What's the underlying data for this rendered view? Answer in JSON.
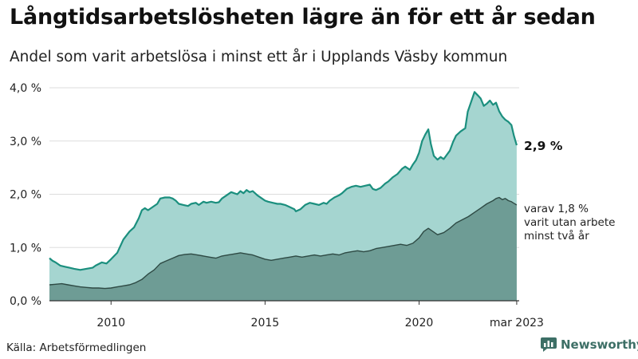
{
  "title": "Långtidsarbetslösheten lägre än för ett år sedan",
  "subtitle": "Andel som varit arbetslösa i minst ett år i Upplands Väsby kommun",
  "source": "Källa: Arbetsförmedlingen",
  "brand": {
    "name": "Newsworthy",
    "icon": "bar-chart-icon",
    "color": "#3d6f66"
  },
  "colors": {
    "total_fill": "#a5d5d0",
    "total_line": "#1b8f7e",
    "long_fill": "#6e9c95",
    "long_line": "#2e4a44",
    "grid": "#dddddd",
    "axis": "#333333"
  },
  "chart_data": {
    "type": "area",
    "x_range": [
      2008,
      2023.25
    ],
    "y_range": [
      0,
      4.0
    ],
    "y_ticks": [
      {
        "value": 0,
        "label": "0,0 %"
      },
      {
        "value": 1.0,
        "label": "1,0 %"
      },
      {
        "value": 2.0,
        "label": "2,0 %"
      },
      {
        "value": 3.0,
        "label": "3,0 %"
      },
      {
        "value": 4.0,
        "label": "4,0 %"
      }
    ],
    "x_ticks": [
      {
        "value": 2010,
        "label": "2010"
      },
      {
        "value": 2015,
        "label": "2015"
      },
      {
        "value": 2020,
        "label": "2020"
      },
      {
        "value": 2023.17,
        "label": "mar 2023"
      }
    ],
    "grid": true,
    "series": [
      {
        "key": "total",
        "points": [
          [
            2008.0,
            0.8
          ],
          [
            2008.1,
            0.75
          ],
          [
            2008.2,
            0.72
          ],
          [
            2008.35,
            0.66
          ],
          [
            2008.5,
            0.64
          ],
          [
            2008.65,
            0.62
          ],
          [
            2008.8,
            0.6
          ],
          [
            2009.0,
            0.58
          ],
          [
            2009.2,
            0.6
          ],
          [
            2009.4,
            0.62
          ],
          [
            2009.5,
            0.66
          ],
          [
            2009.7,
            0.72
          ],
          [
            2009.85,
            0.7
          ],
          [
            2010.0,
            0.78
          ],
          [
            2010.2,
            0.9
          ],
          [
            2010.4,
            1.15
          ],
          [
            2010.6,
            1.3
          ],
          [
            2010.75,
            1.38
          ],
          [
            2010.9,
            1.55
          ],
          [
            2011.0,
            1.7
          ],
          [
            2011.1,
            1.74
          ],
          [
            2011.2,
            1.7
          ],
          [
            2011.35,
            1.76
          ],
          [
            2011.5,
            1.82
          ],
          [
            2011.6,
            1.92
          ],
          [
            2011.75,
            1.94
          ],
          [
            2011.9,
            1.94
          ],
          [
            2012.0,
            1.92
          ],
          [
            2012.1,
            1.88
          ],
          [
            2012.2,
            1.82
          ],
          [
            2012.35,
            1.8
          ],
          [
            2012.5,
            1.78
          ],
          [
            2012.6,
            1.82
          ],
          [
            2012.75,
            1.84
          ],
          [
            2012.85,
            1.8
          ],
          [
            2013.0,
            1.86
          ],
          [
            2013.1,
            1.84
          ],
          [
            2013.25,
            1.86
          ],
          [
            2013.4,
            1.84
          ],
          [
            2013.5,
            1.85
          ],
          [
            2013.6,
            1.92
          ],
          [
            2013.75,
            1.98
          ],
          [
            2013.9,
            2.04
          ],
          [
            2014.0,
            2.02
          ],
          [
            2014.1,
            2.0
          ],
          [
            2014.2,
            2.06
          ],
          [
            2014.3,
            2.02
          ],
          [
            2014.4,
            2.08
          ],
          [
            2014.5,
            2.04
          ],
          [
            2014.6,
            2.06
          ],
          [
            2014.75,
            1.98
          ],
          [
            2014.9,
            1.92
          ],
          [
            2015.0,
            1.88
          ],
          [
            2015.1,
            1.86
          ],
          [
            2015.25,
            1.84
          ],
          [
            2015.4,
            1.82
          ],
          [
            2015.5,
            1.82
          ],
          [
            2015.65,
            1.8
          ],
          [
            2015.8,
            1.76
          ],
          [
            2015.95,
            1.72
          ],
          [
            2016.0,
            1.68
          ],
          [
            2016.15,
            1.72
          ],
          [
            2016.3,
            1.8
          ],
          [
            2016.45,
            1.84
          ],
          [
            2016.6,
            1.82
          ],
          [
            2016.75,
            1.8
          ],
          [
            2016.9,
            1.84
          ],
          [
            2017.0,
            1.82
          ],
          [
            2017.1,
            1.88
          ],
          [
            2017.25,
            1.94
          ],
          [
            2017.4,
            1.98
          ],
          [
            2017.5,
            2.02
          ],
          [
            2017.65,
            2.1
          ],
          [
            2017.8,
            2.14
          ],
          [
            2017.95,
            2.16
          ],
          [
            2018.1,
            2.14
          ],
          [
            2018.25,
            2.16
          ],
          [
            2018.4,
            2.18
          ],
          [
            2018.5,
            2.1
          ],
          [
            2018.6,
            2.08
          ],
          [
            2018.75,
            2.12
          ],
          [
            2018.9,
            2.2
          ],
          [
            2019.0,
            2.24
          ],
          [
            2019.15,
            2.32
          ],
          [
            2019.3,
            2.38
          ],
          [
            2019.45,
            2.48
          ],
          [
            2019.55,
            2.52
          ],
          [
            2019.7,
            2.46
          ],
          [
            2019.8,
            2.56
          ],
          [
            2019.9,
            2.64
          ],
          [
            2020.0,
            2.78
          ],
          [
            2020.1,
            3.0
          ],
          [
            2020.2,
            3.12
          ],
          [
            2020.3,
            3.22
          ],
          [
            2020.38,
            2.95
          ],
          [
            2020.48,
            2.72
          ],
          [
            2020.6,
            2.65
          ],
          [
            2020.7,
            2.7
          ],
          [
            2020.8,
            2.66
          ],
          [
            2020.9,
            2.74
          ],
          [
            2021.0,
            2.82
          ],
          [
            2021.1,
            2.98
          ],
          [
            2021.2,
            3.1
          ],
          [
            2021.35,
            3.18
          ],
          [
            2021.5,
            3.24
          ],
          [
            2021.58,
            3.55
          ],
          [
            2021.68,
            3.72
          ],
          [
            2021.8,
            3.92
          ],
          [
            2021.9,
            3.86
          ],
          [
            2022.0,
            3.8
          ],
          [
            2022.1,
            3.66
          ],
          [
            2022.2,
            3.7
          ],
          [
            2022.3,
            3.76
          ],
          [
            2022.4,
            3.68
          ],
          [
            2022.5,
            3.72
          ],
          [
            2022.6,
            3.56
          ],
          [
            2022.7,
            3.46
          ],
          [
            2022.8,
            3.4
          ],
          [
            2022.9,
            3.36
          ],
          [
            2023.0,
            3.3
          ],
          [
            2023.08,
            3.1
          ],
          [
            2023.17,
            2.92
          ]
        ],
        "end_label": "2,9 %"
      },
      {
        "key": "long",
        "points": [
          [
            2008.0,
            0.3
          ],
          [
            2008.2,
            0.31
          ],
          [
            2008.4,
            0.32
          ],
          [
            2008.6,
            0.3
          ],
          [
            2008.8,
            0.28
          ],
          [
            2009.0,
            0.26
          ],
          [
            2009.2,
            0.25
          ],
          [
            2009.4,
            0.24
          ],
          [
            2009.6,
            0.24
          ],
          [
            2009.8,
            0.23
          ],
          [
            2010.0,
            0.24
          ],
          [
            2010.2,
            0.26
          ],
          [
            2010.4,
            0.28
          ],
          [
            2010.6,
            0.3
          ],
          [
            2010.8,
            0.34
          ],
          [
            2011.0,
            0.4
          ],
          [
            2011.2,
            0.5
          ],
          [
            2011.4,
            0.58
          ],
          [
            2011.6,
            0.7
          ],
          [
            2011.8,
            0.75
          ],
          [
            2012.0,
            0.8
          ],
          [
            2012.2,
            0.85
          ],
          [
            2012.4,
            0.87
          ],
          [
            2012.6,
            0.88
          ],
          [
            2012.8,
            0.86
          ],
          [
            2013.0,
            0.84
          ],
          [
            2013.2,
            0.82
          ],
          [
            2013.4,
            0.8
          ],
          [
            2013.6,
            0.84
          ],
          [
            2013.8,
            0.86
          ],
          [
            2014.0,
            0.88
          ],
          [
            2014.2,
            0.9
          ],
          [
            2014.4,
            0.88
          ],
          [
            2014.6,
            0.86
          ],
          [
            2014.8,
            0.82
          ],
          [
            2015.0,
            0.78
          ],
          [
            2015.2,
            0.76
          ],
          [
            2015.4,
            0.78
          ],
          [
            2015.6,
            0.8
          ],
          [
            2015.8,
            0.82
          ],
          [
            2016.0,
            0.84
          ],
          [
            2016.2,
            0.82
          ],
          [
            2016.4,
            0.84
          ],
          [
            2016.6,
            0.86
          ],
          [
            2016.8,
            0.84
          ],
          [
            2017.0,
            0.86
          ],
          [
            2017.2,
            0.88
          ],
          [
            2017.4,
            0.86
          ],
          [
            2017.6,
            0.9
          ],
          [
            2017.8,
            0.92
          ],
          [
            2018.0,
            0.94
          ],
          [
            2018.2,
            0.92
          ],
          [
            2018.4,
            0.94
          ],
          [
            2018.6,
            0.98
          ],
          [
            2018.8,
            1.0
          ],
          [
            2019.0,
            1.02
          ],
          [
            2019.2,
            1.04
          ],
          [
            2019.4,
            1.06
          ],
          [
            2019.6,
            1.04
          ],
          [
            2019.8,
            1.08
          ],
          [
            2020.0,
            1.18
          ],
          [
            2020.15,
            1.3
          ],
          [
            2020.3,
            1.36
          ],
          [
            2020.45,
            1.3
          ],
          [
            2020.6,
            1.24
          ],
          [
            2020.8,
            1.28
          ],
          [
            2021.0,
            1.36
          ],
          [
            2021.2,
            1.46
          ],
          [
            2021.4,
            1.52
          ],
          [
            2021.6,
            1.58
          ],
          [
            2021.8,
            1.66
          ],
          [
            2022.0,
            1.74
          ],
          [
            2022.2,
            1.82
          ],
          [
            2022.4,
            1.88
          ],
          [
            2022.5,
            1.92
          ],
          [
            2022.6,
            1.94
          ],
          [
            2022.7,
            1.9
          ],
          [
            2022.8,
            1.92
          ],
          [
            2022.9,
            1.88
          ],
          [
            2023.0,
            1.86
          ],
          [
            2023.08,
            1.83
          ],
          [
            2023.17,
            1.8
          ]
        ],
        "end_label_lines": [
          "varav 1,8 %",
          "varit utan arbete",
          "minst två år"
        ]
      }
    ]
  }
}
